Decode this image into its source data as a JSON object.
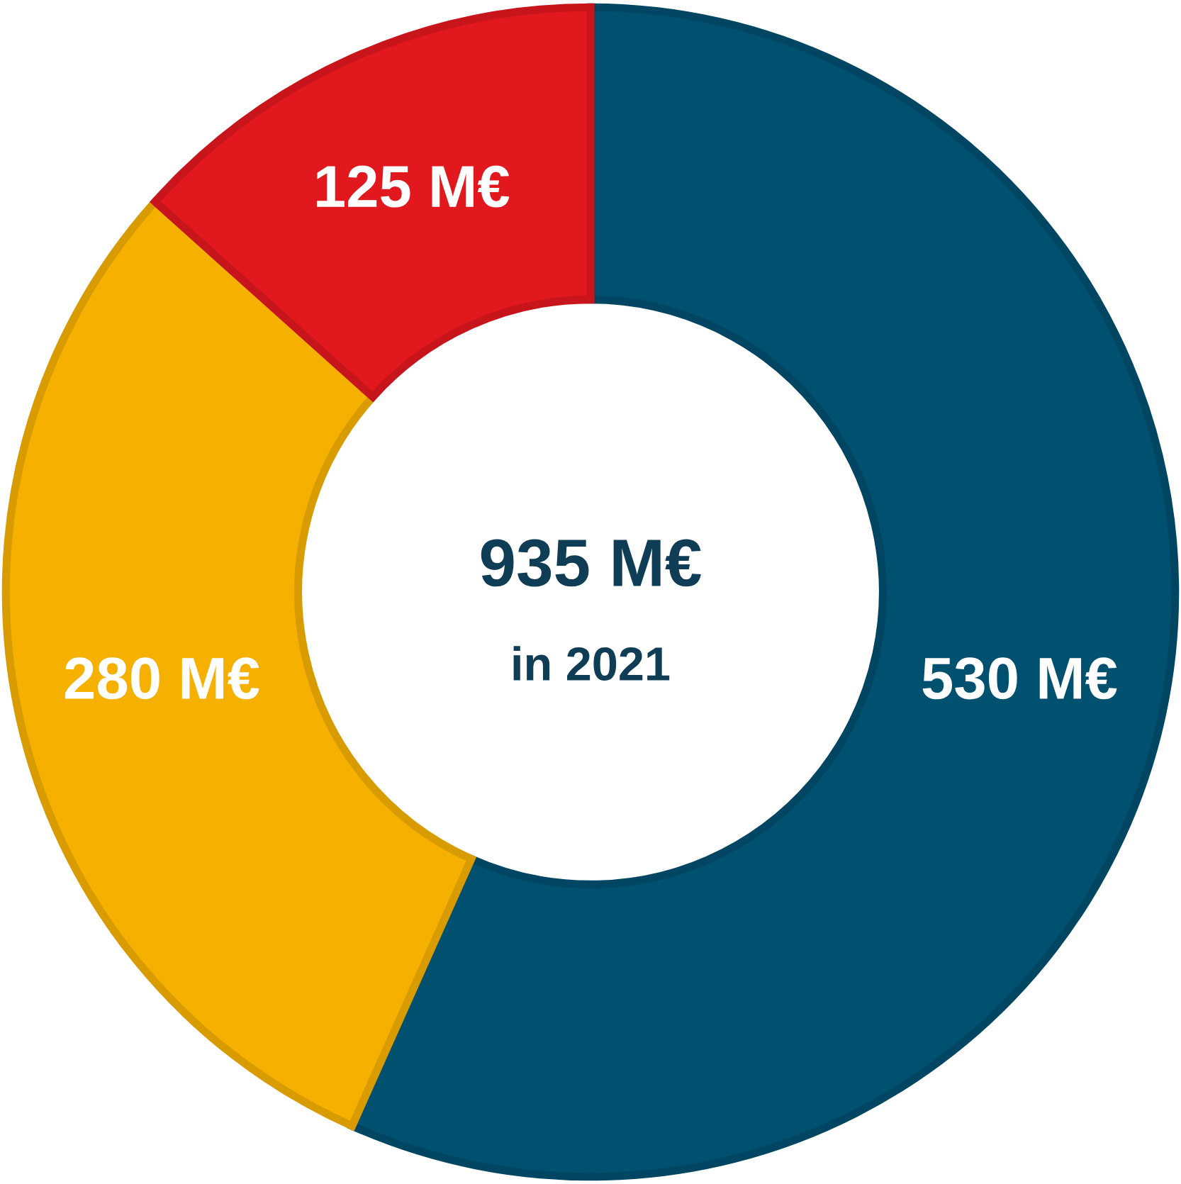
{
  "chart_data": {
    "type": "donut",
    "title": "935 M€",
    "subtitle": "in 2021",
    "categories": [
      null,
      null,
      null
    ],
    "values": [
      530,
      280,
      125
    ],
    "colors": [
      "#00506f",
      "#f5b000",
      "#e2181f"
    ],
    "value_labels": [
      "530 M€",
      "280 M€",
      "125 M€"
    ]
  }
}
